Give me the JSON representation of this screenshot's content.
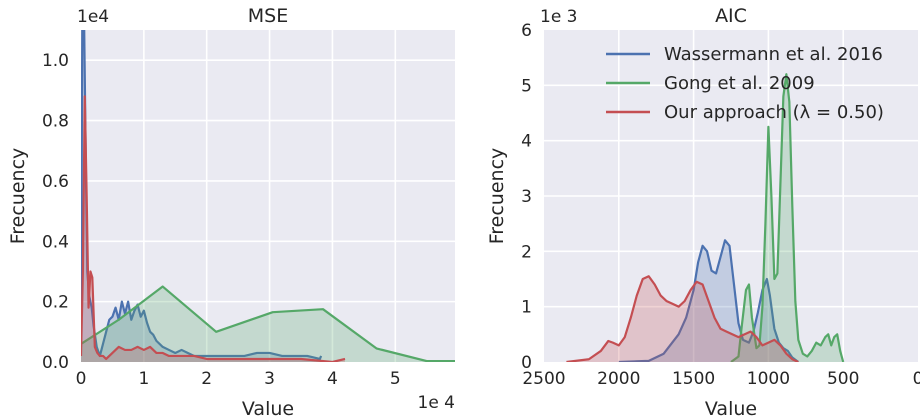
{
  "chart_data": [
    {
      "type": "area",
      "title": "MSE",
      "xlabel": "Value",
      "ylabel": "Frecuency",
      "x_offset_label": "1e 4",
      "y_offset_label": "1e4",
      "xlim": [
        0,
        5.95
      ],
      "ylim": [
        0,
        1.1
      ],
      "xticks": [
        0,
        1,
        2,
        3,
        4,
        5
      ],
      "xtick_labels": [
        "0",
        "1",
        "2",
        "3",
        "4",
        "5"
      ],
      "yticks": [
        0.0,
        0.2,
        0.4,
        0.6,
        0.8,
        1.0
      ],
      "ytick_labels": [
        "0.0",
        "0.2",
        "0.4",
        "0.6",
        "0.8",
        "1.0"
      ],
      "grid": true,
      "series": [
        {
          "color": "#4C72B0",
          "x": [
            0.0,
            0.02,
            0.05,
            0.08,
            0.1,
            0.13,
            0.17,
            0.2,
            0.25,
            0.3,
            0.35,
            0.4,
            0.45,
            0.5,
            0.55,
            0.6,
            0.65,
            0.7,
            0.75,
            0.8,
            0.85,
            0.9,
            0.95,
            1.0,
            1.05,
            1.1,
            1.15,
            1.2,
            1.3,
            1.4,
            1.5,
            1.6,
            1.7,
            1.8,
            1.9,
            2.0,
            2.2,
            2.4,
            2.6,
            2.8,
            3.0,
            3.2,
            3.4,
            3.6,
            3.8,
            3.82
          ],
          "y": [
            0.05,
            1.1,
            1.12,
            0.6,
            0.3,
            0.22,
            0.18,
            0.12,
            0.05,
            0.02,
            0.06,
            0.1,
            0.14,
            0.15,
            0.18,
            0.14,
            0.2,
            0.16,
            0.2,
            0.14,
            0.17,
            0.19,
            0.15,
            0.17,
            0.13,
            0.1,
            0.09,
            0.07,
            0.05,
            0.04,
            0.03,
            0.04,
            0.03,
            0.02,
            0.02,
            0.02,
            0.02,
            0.02,
            0.02,
            0.03,
            0.03,
            0.02,
            0.02,
            0.02,
            0.01,
            0.02
          ]
        },
        {
          "color": "#55A868",
          "x": [
            0.0,
            0.6,
            1.3,
            2.15,
            3.05,
            3.85,
            4.7,
            5.5,
            5.95
          ],
          "y": [
            0.06,
            0.14,
            0.25,
            0.1,
            0.165,
            0.175,
            0.045,
            0.003,
            0.003
          ]
        },
        {
          "color": "#C44E52",
          "x": [
            0.0,
            0.03,
            0.06,
            0.09,
            0.12,
            0.15,
            0.18,
            0.22,
            0.26,
            0.3,
            0.35,
            0.4,
            0.5,
            0.6,
            0.7,
            0.8,
            0.9,
            1.0,
            1.1,
            1.2,
            1.3,
            1.4,
            1.6,
            1.8,
            2.0,
            2.2,
            2.5,
            3.0,
            3.5,
            4.0,
            4.2
          ],
          "y": [
            0.02,
            0.3,
            0.88,
            0.55,
            0.18,
            0.3,
            0.28,
            0.05,
            0.03,
            0.02,
            0.02,
            0.01,
            0.03,
            0.05,
            0.04,
            0.04,
            0.05,
            0.04,
            0.05,
            0.03,
            0.03,
            0.02,
            0.02,
            0.02,
            0.01,
            0.01,
            0.01,
            0.01,
            0.01,
            0.0,
            0.01
          ]
        }
      ]
    },
    {
      "type": "area",
      "title": "AIC",
      "xlabel": "Value",
      "ylabel": "Frecuency",
      "y_offset_label": "1e 3",
      "xlim": [
        2500,
        0
      ],
      "x_inverted": true,
      "ylim": [
        0,
        6
      ],
      "xticks": [
        2500,
        2000,
        1500,
        1000,
        500,
        0
      ],
      "xtick_labels": [
        "2500",
        "2000",
        "1500",
        "1000",
        "500",
        "0"
      ],
      "yticks": [
        0,
        1,
        2,
        3,
        4,
        5,
        6
      ],
      "ytick_labels": [
        "0",
        "1",
        "2",
        "3",
        "4",
        "5",
        "6"
      ],
      "grid": true,
      "legend_position": "top-right",
      "legend": [
        "Wassermann et al. 2016",
        "Gong et al. 2009",
        "Our approach (λ = 0.50)"
      ],
      "series": [
        {
          "name": "Wassermann et al. 2016",
          "color": "#4C72B0",
          "x": [
            2000,
            1800,
            1700,
            1600,
            1550,
            1500,
            1470,
            1440,
            1410,
            1380,
            1350,
            1320,
            1290,
            1260,
            1230,
            1200,
            1170,
            1130,
            1100,
            1070,
            1040,
            1010,
            990,
            960,
            930,
            900,
            870,
            840,
            800
          ],
          "y": [
            0,
            0.02,
            0.15,
            0.5,
            0.8,
            1.3,
            1.8,
            2.1,
            2.0,
            1.65,
            1.6,
            1.9,
            2.2,
            2.1,
            1.4,
            0.7,
            0.4,
            0.35,
            0.55,
            0.9,
            1.3,
            1.5,
            1.2,
            0.6,
            0.35,
            0.25,
            0.2,
            0.08,
            0
          ]
        },
        {
          "name": "Gong et al. 2009",
          "color": "#55A868",
          "x": [
            1250,
            1200,
            1180,
            1150,
            1130,
            1110,
            1080,
            1060,
            1040,
            1020,
            1000,
            980,
            960,
            940,
            920,
            900,
            880,
            860,
            840,
            820,
            800,
            770,
            740,
            710,
            680,
            650,
            620,
            600,
            580,
            560,
            540,
            520,
            500
          ],
          "y": [
            0,
            0.1,
            0.6,
            1.3,
            1.4,
            0.8,
            0.25,
            0.3,
            1.0,
            2.5,
            4.25,
            3.0,
            1.5,
            1.6,
            3.2,
            4.8,
            5.2,
            4.7,
            2.8,
            1.1,
            0.4,
            0.15,
            0.1,
            0.2,
            0.35,
            0.3,
            0.45,
            0.5,
            0.3,
            0.45,
            0.5,
            0.2,
            0
          ]
        },
        {
          "name": "Our approach (λ = 0.50)",
          "color": "#C44E52",
          "x": [
            2350,
            2200,
            2120,
            2070,
            2040,
            2000,
            1960,
            1920,
            1880,
            1840,
            1800,
            1760,
            1720,
            1680,
            1640,
            1600,
            1560,
            1520,
            1480,
            1440,
            1400,
            1360,
            1320,
            1280,
            1240,
            1200,
            1160,
            1120,
            1080,
            1040,
            1000,
            960,
            920,
            880,
            840,
            800
          ],
          "y": [
            0,
            0.05,
            0.2,
            0.38,
            0.35,
            0.3,
            0.45,
            0.8,
            1.2,
            1.5,
            1.55,
            1.4,
            1.2,
            1.1,
            1.05,
            1.0,
            1.1,
            1.3,
            1.45,
            1.4,
            1.1,
            0.8,
            0.6,
            0.55,
            0.5,
            0.45,
            0.5,
            0.55,
            0.45,
            0.3,
            0.35,
            0.4,
            0.3,
            0.15,
            0.05,
            0
          ]
        }
      ]
    }
  ]
}
